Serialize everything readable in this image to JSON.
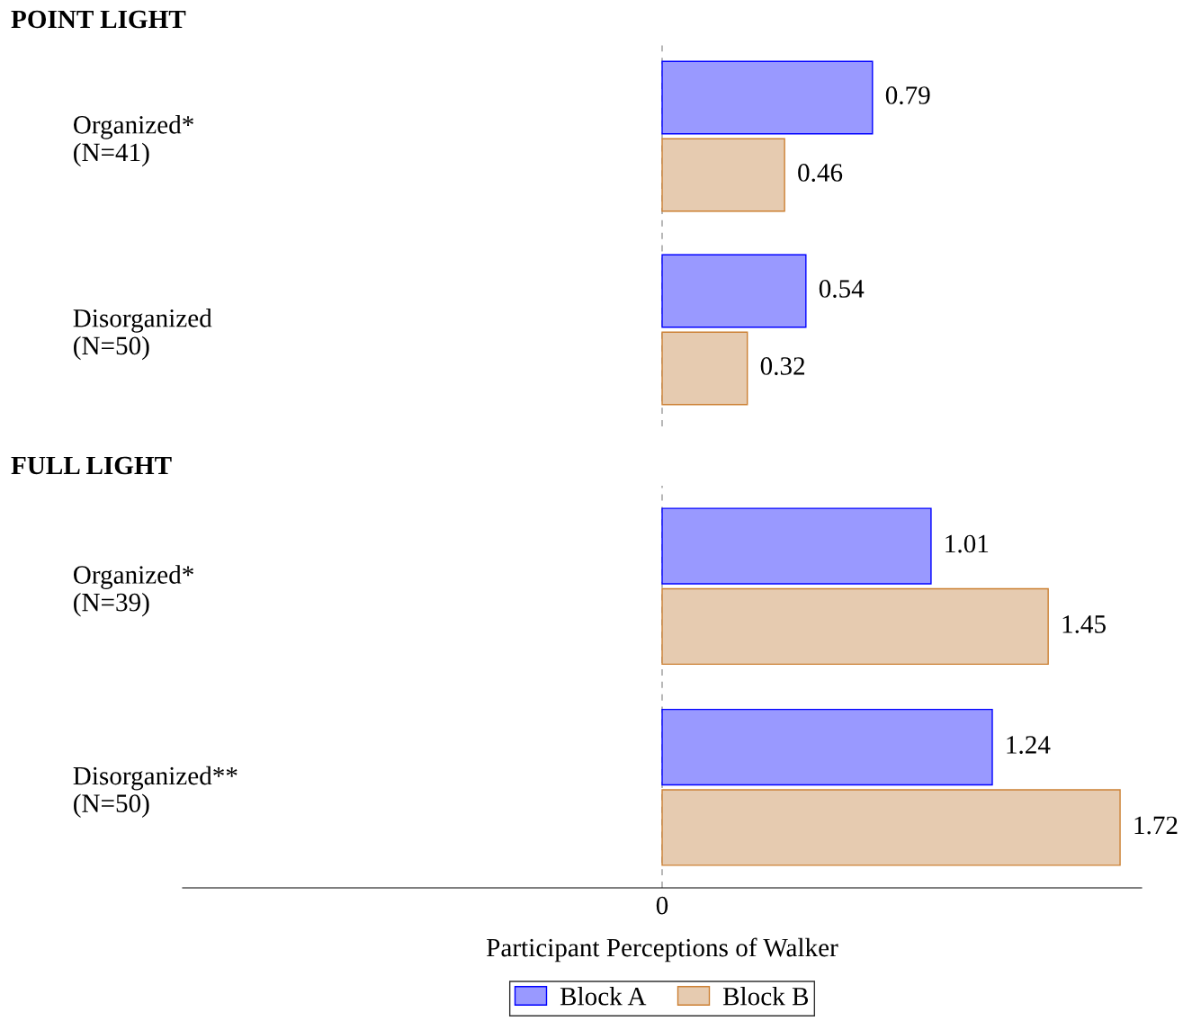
{
  "chart_data": [
    {
      "type": "bar",
      "orientation": "horizontal",
      "title": "POINT LIGHT",
      "categories": [
        "Organized*\n(N=41)",
        "Disorganized\n(N=50)"
      ],
      "series": [
        {
          "color": "#9999ff",
          "values": [
            0.79,
            0.54
          ]
        },
        {
          "color": "#e6cbb0",
          "values": [
            0.46,
            0.32
          ]
        }
      ],
      "tick_labels": "y",
      "data_labels": true,
      "legend": false,
      "ref_lines": [
        {
          "axis": "x",
          "value": 0,
          "color": "#999999",
          "line_style": "dashed"
        }
      ]
    },
    {
      "type": "bar",
      "orientation": "horizontal",
      "title": "FULL LIGHT",
      "xlabel": "Participant Perceptions of Walker",
      "categories": [
        "Organized*\n(N=39)",
        "Disorganized**\n(N=50)"
      ],
      "series": [
        {
          "name": "Block A",
          "color": "#9999ff",
          "values": [
            1.01,
            1.24
          ]
        },
        {
          "name": "Block B",
          "color": "#e6cbb0",
          "values": [
            1.45,
            1.72
          ]
        }
      ],
      "annotations": [
        "0"
      ],
      "data_labels": true,
      "legend": "bottom",
      "ref_lines": [
        {
          "axis": "x",
          "value": 0,
          "color": "#999999",
          "line_style": "dashed"
        }
      ]
    }
  ]
}
